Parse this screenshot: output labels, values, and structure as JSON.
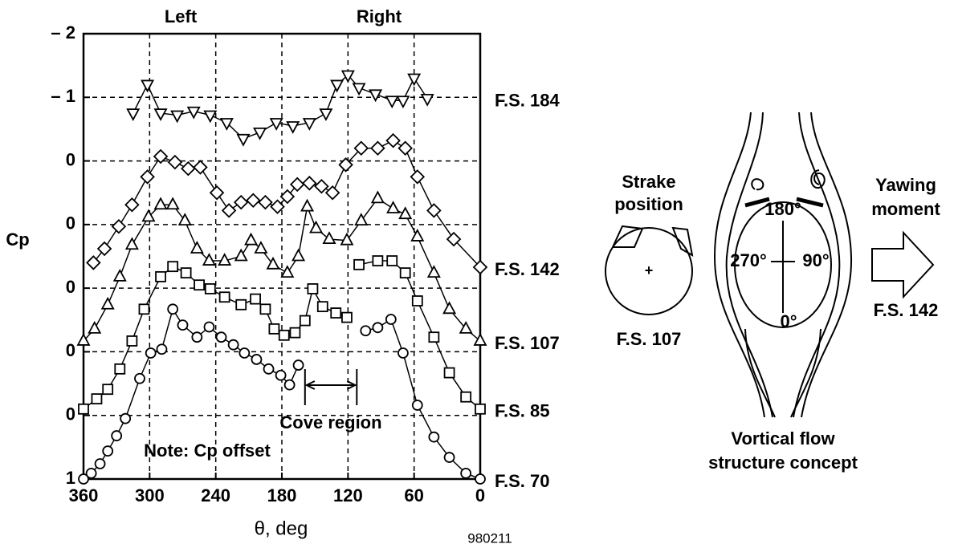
{
  "chart_data": {
    "type": "line",
    "y_label": "Cp",
    "x_label": "θ, deg",
    "annotations": {
      "left": "Left",
      "right": "Right",
      "note": "Note: Cp offset",
      "cove": "Cove region",
      "figure_id": "980211"
    },
    "cove_region": [
      159,
      112
    ],
    "xlim": [
      360,
      0
    ],
    "xticks": [
      360,
      300,
      240,
      180,
      120,
      60,
      0
    ],
    "ylim": [
      -2,
      5
    ],
    "y_inverted": true,
    "yticks": [
      {
        "value": -2,
        "label": "– 2"
      },
      {
        "value": -1,
        "label": "– 1"
      },
      0,
      {
        "value": 1,
        "label": "0"
      },
      {
        "value": 2,
        "label": "0"
      },
      {
        "value": 3,
        "label": "0"
      },
      {
        "value": 4,
        "label": "0"
      },
      {
        "value": 5,
        "label": "1"
      }
    ],
    "grid": true,
    "series": [
      {
        "name": "F.S. 184",
        "marker": "triangle-down",
        "color": "#000000",
        "x": [
          315,
          302,
          290,
          275,
          260,
          245,
          230,
          215,
          200,
          185,
          170,
          155,
          140,
          130,
          120,
          110,
          95,
          80,
          70,
          60,
          48
        ],
        "values": [
          -0.75,
          -1.2,
          -0.75,
          -0.72,
          -0.78,
          -0.72,
          -0.6,
          -0.35,
          -0.45,
          -0.6,
          -0.55,
          -0.6,
          -0.75,
          -1.2,
          -1.35,
          -1.15,
          -1.05,
          -0.95,
          -0.95,
          -1.3,
          -0.98
        ]
      },
      {
        "name": "F.S. 142",
        "marker": "diamond",
        "color": "#000000",
        "x": [
          351,
          341,
          328,
          316,
          302,
          290,
          277,
          265,
          254,
          239,
          228,
          217,
          206,
          195,
          184,
          175,
          166,
          155,
          144,
          134,
          122,
          108,
          93,
          79,
          68,
          57,
          42,
          24,
          0
        ],
        "values": [
          1.6,
          1.38,
          1.03,
          0.69,
          0.25,
          -0.07,
          0.02,
          0.12,
          0.1,
          0.5,
          0.78,
          0.65,
          0.62,
          0.65,
          0.72,
          0.56,
          0.37,
          0.35,
          0.4,
          0.5,
          0.06,
          -0.2,
          -0.2,
          -0.32,
          -0.2,
          0.25,
          0.78,
          1.23,
          1.67
        ]
      },
      {
        "name": "F.S. 107",
        "marker": "triangle-up",
        "color": "#000000",
        "x": [
          360,
          350,
          338,
          327,
          316,
          301,
          290,
          279,
          268,
          257,
          246,
          232,
          217,
          208,
          199,
          188,
          175,
          165,
          157,
          149,
          137,
          121,
          108,
          93,
          79,
          68,
          57,
          42,
          28,
          13,
          0
        ],
        "values": [
          2.83,
          2.64,
          2.26,
          1.82,
          1.32,
          0.88,
          0.69,
          0.69,
          0.94,
          1.38,
          1.57,
          1.57,
          1.5,
          1.25,
          1.38,
          1.63,
          1.76,
          1.5,
          0.72,
          1.06,
          1.23,
          1.25,
          0.94,
          0.59,
          0.75,
          0.84,
          1.19,
          1.76,
          2.33,
          2.64,
          2.83
        ]
      },
      {
        "name": "F.S. 85",
        "marker": "square",
        "color": "#000000",
        "x": [
          360,
          348,
          338,
          327,
          316,
          305,
          290,
          279,
          267,
          255,
          245,
          232,
          217,
          204,
          195,
          187,
          178,
          168,
          159,
          152,
          143,
          131,
          121,
          115,
          110,
          93,
          80,
          68,
          57,
          42,
          28,
          13,
          0
        ],
        "values": [
          3.9,
          3.74,
          3.59,
          3.27,
          2.83,
          2.33,
          1.82,
          1.66,
          1.76,
          1.95,
          2.01,
          2.14,
          2.26,
          2.17,
          2.33,
          2.64,
          2.74,
          2.7,
          2.51,
          2.01,
          2.29,
          2.39,
          2.46,
          null,
          1.63,
          1.57,
          1.57,
          1.76,
          2.2,
          2.77,
          3.33,
          3.71,
          3.9
        ]
      },
      {
        "name": "F.S. 70",
        "marker": "circle",
        "color": "#000000",
        "x": [
          360,
          353,
          345,
          338,
          330,
          322,
          309,
          299,
          289,
          279,
          270,
          257,
          246,
          235,
          224,
          214,
          203,
          192,
          181,
          173,
          165,
          135,
          104,
          93,
          81,
          70,
          57,
          42,
          28,
          13,
          0
        ],
        "values": [
          5.0,
          4.91,
          4.76,
          4.56,
          4.32,
          4.05,
          3.42,
          3.02,
          2.96,
          2.33,
          2.58,
          2.77,
          2.61,
          2.77,
          2.89,
          3.02,
          3.12,
          3.27,
          3.37,
          3.52,
          3.21,
          null,
          2.67,
          2.62,
          2.49,
          3.02,
          3.84,
          4.34,
          4.66,
          4.91,
          5.0
        ]
      }
    ]
  },
  "diagram": {
    "strake_label": [
      "Strake",
      "position"
    ],
    "strake_fs": "F.S. 107",
    "angles": [
      "180°",
      "270°",
      "90°",
      "0°"
    ],
    "yawing": [
      "Yawing",
      "moment"
    ],
    "yaw_fs": "F.S. 142",
    "caption": [
      "Vortical flow",
      "structure concept"
    ]
  }
}
